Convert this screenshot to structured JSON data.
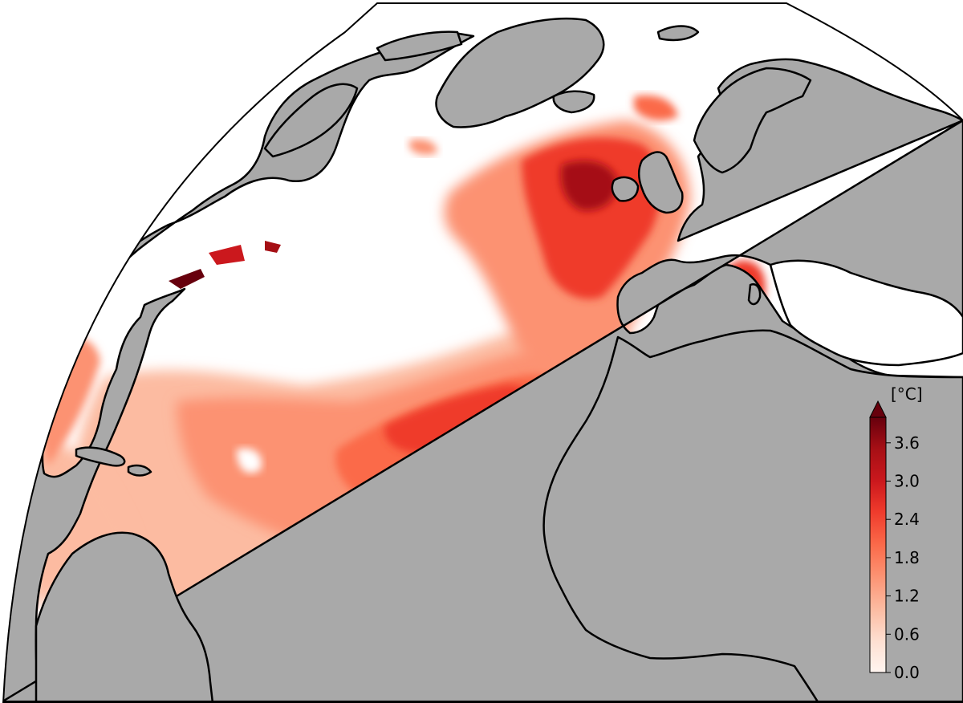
{
  "map": {
    "projection": "orthographic",
    "region": "North Atlantic",
    "land_color": "#a9a9a9",
    "ocean_background": "#ffffff",
    "coastline_color": "#000000"
  },
  "colorbar": {
    "unit": "[°C]",
    "min": 0.0,
    "max": 4.0,
    "extend": "max",
    "cmap": "Reds",
    "ticks": [
      "0.0",
      "0.6",
      "1.2",
      "1.8",
      "2.4",
      "3.0",
      "3.6"
    ],
    "colors": [
      "#fff5f0",
      "#fee0d2",
      "#fcbba1",
      "#fc9272",
      "#fb6a4a",
      "#ef3b2c",
      "#cb181d",
      "#a50f15",
      "#67000d"
    ]
  }
}
